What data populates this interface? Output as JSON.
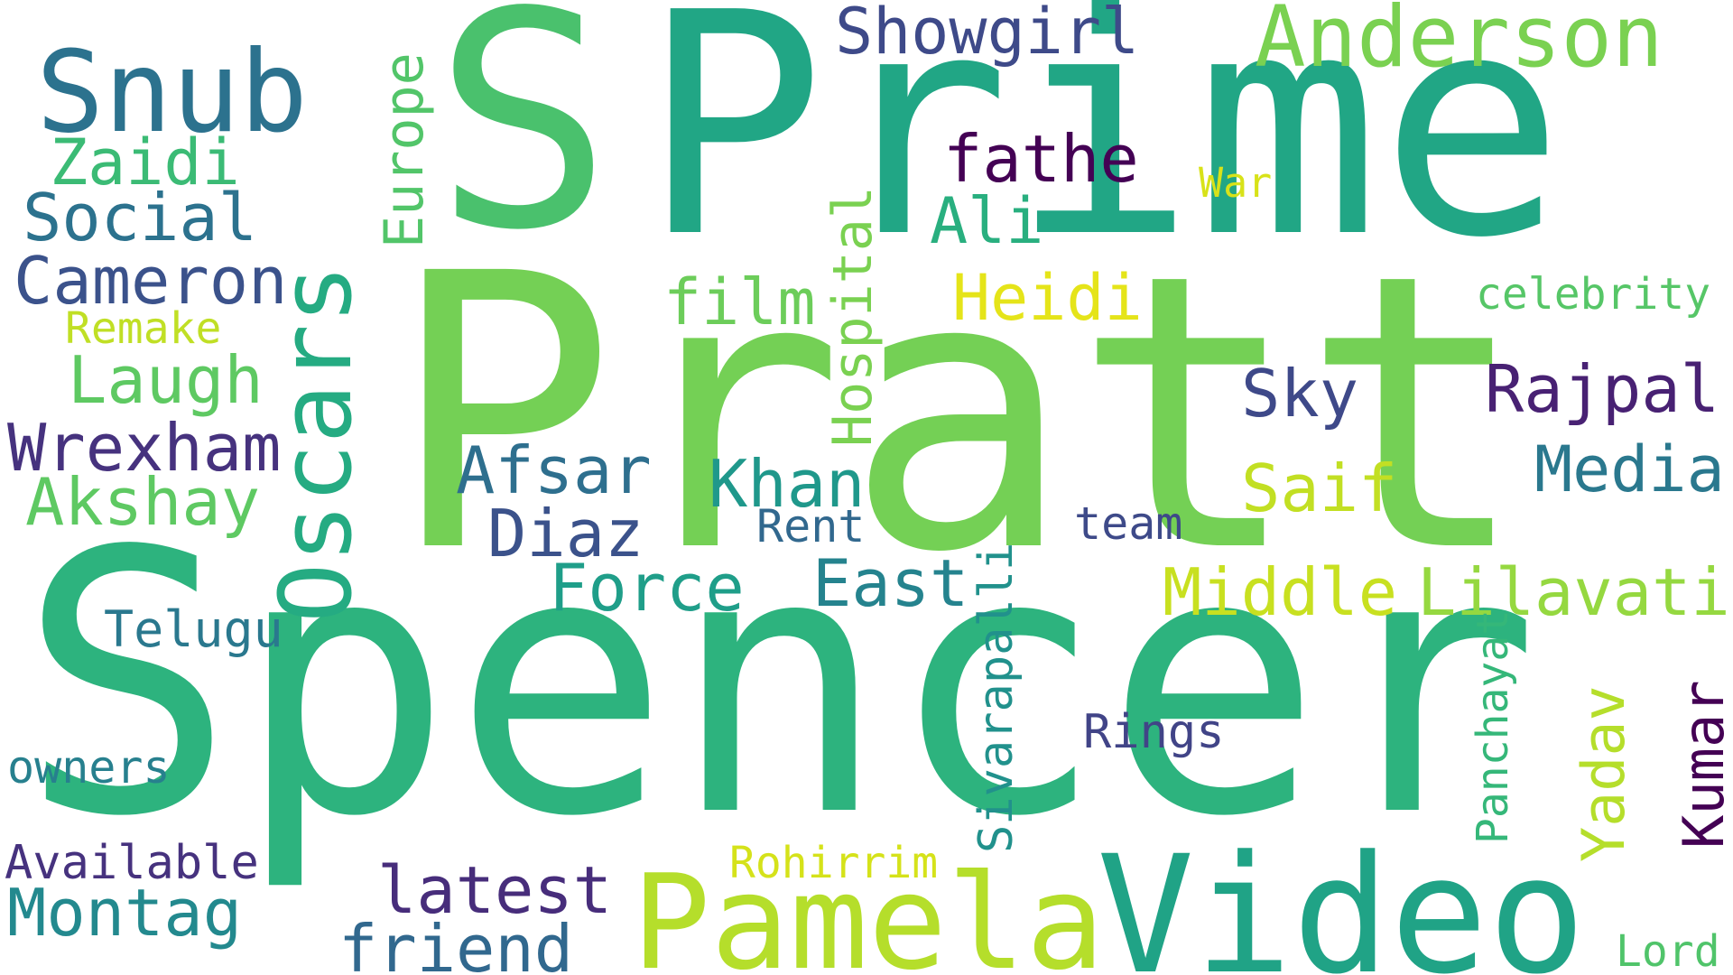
{
  "words": [
    {
      "text": "Spencer",
      "color": "#2db37e"
    },
    {
      "text": "Pratt",
      "color": "#74d055"
    },
    {
      "text": "Prime",
      "color": "#21a685"
    },
    {
      "text": "S",
      "color": "#4ac16d"
    },
    {
      "text": "Video",
      "color": "#20a386"
    },
    {
      "text": "Pamela",
      "color": "#b5de2b"
    },
    {
      "text": "Snub",
      "color": "#2c728e"
    },
    {
      "text": "Oscars",
      "color": "#25ab82"
    },
    {
      "text": "Anderson",
      "color": "#7ad151"
    },
    {
      "text": "Showgirl",
      "color": "#3e4a89"
    },
    {
      "text": "Europe",
      "color": "#52c569"
    },
    {
      "text": "Zaidi",
      "color": "#3bbb75"
    },
    {
      "text": "Social",
      "color": "#2c728e"
    },
    {
      "text": "Cameron",
      "color": "#3b528b"
    },
    {
      "text": "Remake",
      "color": "#c0df25"
    },
    {
      "text": "Laugh",
      "color": "#5ec962"
    },
    {
      "text": "Wrexham",
      "color": "#46327e"
    },
    {
      "text": "Akshay",
      "color": "#5ec962"
    },
    {
      "text": "Telugu",
      "color": "#2a788e"
    },
    {
      "text": "owners",
      "color": "#27808e"
    },
    {
      "text": "Available",
      "color": "#46327e"
    },
    {
      "text": "Montag",
      "color": "#23898e"
    },
    {
      "text": "fathe",
      "color": "#440154"
    },
    {
      "text": "War",
      "color": "#d8e219"
    },
    {
      "text": "Ali",
      "color": "#29af7f"
    },
    {
      "text": "film",
      "color": "#6ccd5a"
    },
    {
      "text": "Hospital",
      "color": "#7ad151"
    },
    {
      "text": "Heidi",
      "color": "#e5e419"
    },
    {
      "text": "celebrity",
      "color": "#56c667"
    },
    {
      "text": "Rajpal",
      "color": "#482173"
    },
    {
      "text": "Sky",
      "color": "#3e4989"
    },
    {
      "text": "Afsar",
      "color": "#2e6f8e"
    },
    {
      "text": "Khan",
      "color": "#1f988b"
    },
    {
      "text": "Media",
      "color": "#2a788e"
    },
    {
      "text": "Saif",
      "color": "#c2df23"
    },
    {
      "text": "Diaz",
      "color": "#3b528b"
    },
    {
      "text": "Rent",
      "color": "#31688e"
    },
    {
      "text": "team",
      "color": "#3e4a89"
    },
    {
      "text": "Force",
      "color": "#1f9e89"
    },
    {
      "text": "East",
      "color": "#25838e"
    },
    {
      "text": "Middle",
      "color": "#c8e020"
    },
    {
      "text": "Lilavati",
      "color": "#95d840"
    },
    {
      "text": "Sivarapalli",
      "color": "#21918c"
    },
    {
      "text": "Panchayat",
      "color": "#35b779"
    },
    {
      "text": "Yadav",
      "color": "#b5de2b"
    },
    {
      "text": "Kumar",
      "color": "#440154"
    },
    {
      "text": "Rings",
      "color": "#414487"
    },
    {
      "text": "Rohirrim",
      "color": "#d5e21a"
    },
    {
      "text": "latest",
      "color": "#472d7b"
    },
    {
      "text": "friend",
      "color": "#31688e"
    },
    {
      "text": "Lord",
      "color": "#50c46a"
    }
  ]
}
